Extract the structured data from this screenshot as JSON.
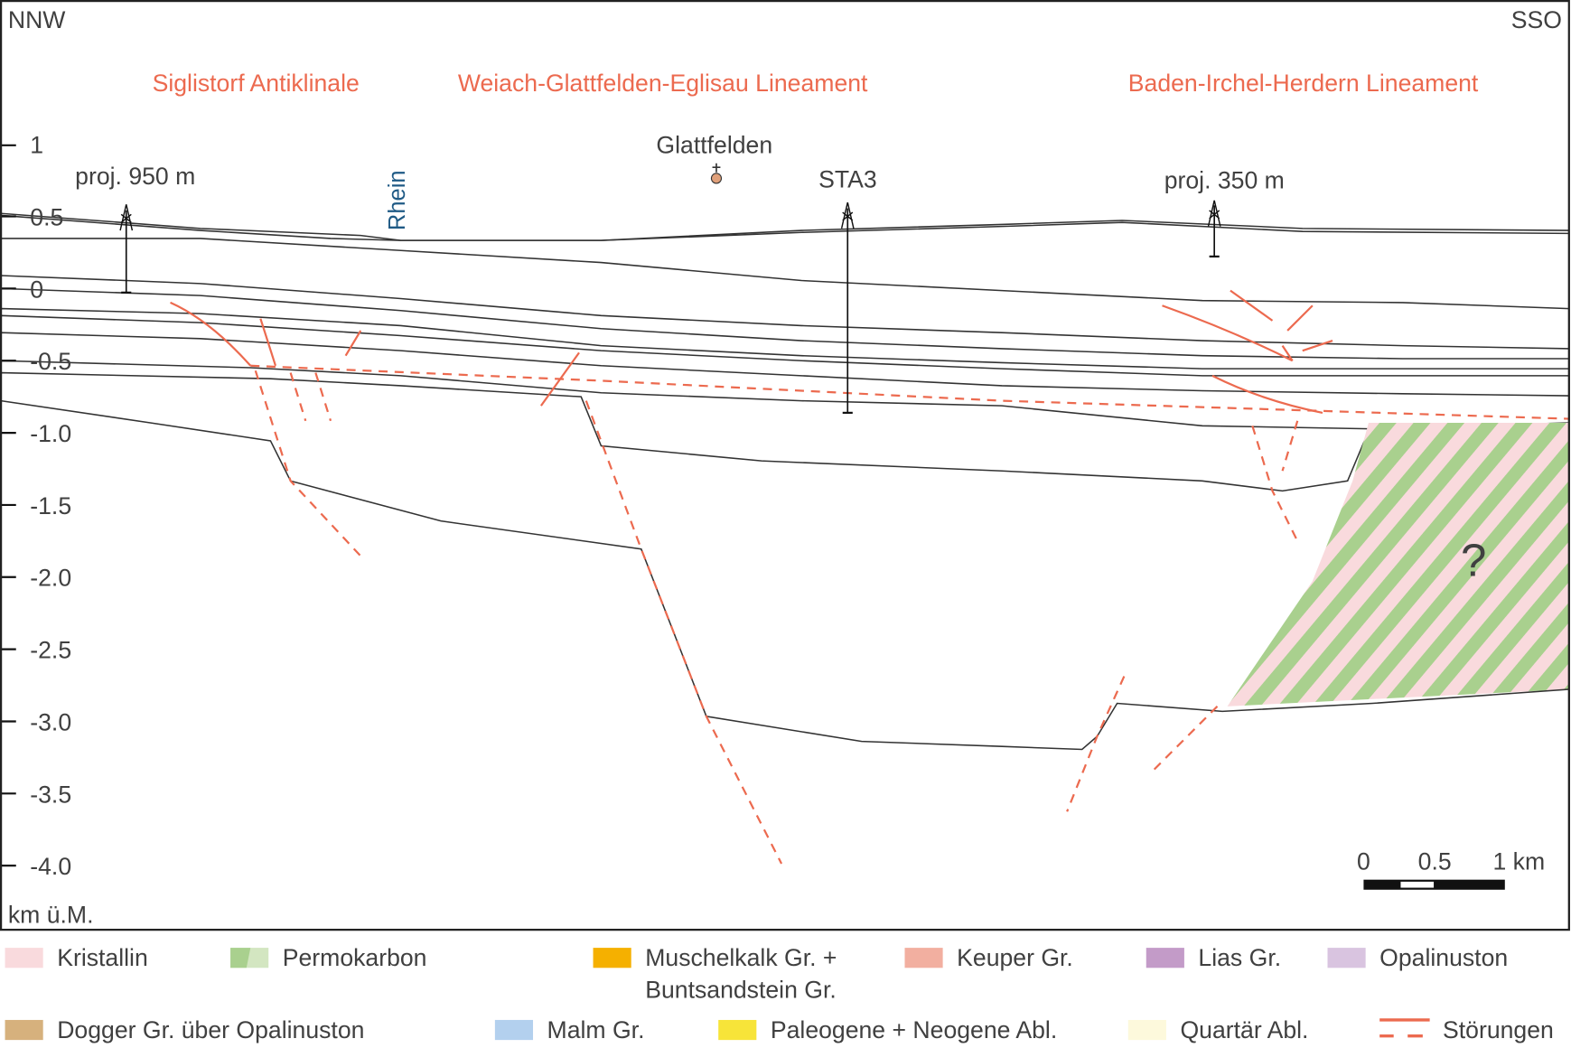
{
  "orientation": {
    "left": "NNW",
    "right": "SSO"
  },
  "structures": [
    "Siglistorf Antiklinale",
    "Weiach-Glattfelden-Eglisau Lineament",
    "Baden-Irchel-Herdern Lineament"
  ],
  "places": {
    "town": "Glattfelden",
    "river": "Rhein"
  },
  "wells": [
    {
      "label": "proj. 950 m"
    },
    {
      "label": "STA3"
    },
    {
      "label": "proj. 350 m"
    }
  ],
  "axis": {
    "unit": "km ü.M.",
    "ticks": [
      "1",
      "0.5",
      "0",
      "-0.5",
      "-1.0",
      "-1.5",
      "-2.0",
      "-2.5",
      "-3.0",
      "-3.5",
      "-4.0"
    ]
  },
  "scale_bar": {
    "labels": [
      "0",
      "0.5",
      "1 km"
    ]
  },
  "unknown_marker": "?",
  "legend": [
    {
      "label": "Kristallin",
      "color": "#f9dadd"
    },
    {
      "label": "Permokarbon",
      "color": "#a9d08e",
      "color2": "#d3e6c1"
    },
    {
      "label": "Muschelkalk Gr. +",
      "label2": "Buntsandstein Gr.",
      "color": "#f5b000"
    },
    {
      "label": "Keuper Gr.",
      "color": "#f2afa0"
    },
    {
      "label": "Lias Gr.",
      "color": "#c39bc8"
    },
    {
      "label": "Opalinuston",
      "color": "#d9c4e0"
    },
    {
      "label": "Dogger Gr. über Opalinuston",
      "color": "#d6b17d"
    },
    {
      "label": "Malm Gr.",
      "color": "#b3d0ee"
    },
    {
      "label": "Paleogene + Neogene Abl.",
      "color": "#f7e439"
    },
    {
      "label": "Quartär Abl.",
      "color": "#fdf9dc"
    },
    {
      "label": "Störungen",
      "color": "#ec6a4f"
    }
  ]
}
